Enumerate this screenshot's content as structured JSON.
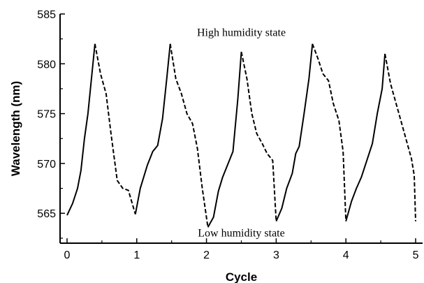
{
  "chart_data": {
    "type": "line",
    "title": "",
    "xlabel": "Cycle",
    "ylabel": "Wavelength (nm)",
    "xlim": [
      -0.1,
      5.1
    ],
    "ylim": [
      562,
      585
    ],
    "x_ticks": [
      0,
      1,
      2,
      3,
      4,
      5
    ],
    "y_ticks": [
      565,
      570,
      575,
      580,
      585
    ],
    "grid": false,
    "annotations": [
      {
        "text": "High humidity state",
        "x": 2.5,
        "y": 583.2
      },
      {
        "text": "Low humidity state",
        "x": 2.5,
        "y": 563.1
      }
    ],
    "series": [
      {
        "style": "solid",
        "segments": [
          {
            "x": [
              0.0,
              0.08,
              0.15,
              0.2,
              0.25,
              0.3,
              0.35,
              0.4
            ],
            "y": [
              564.8,
              566.0,
              567.5,
              569.3,
              572.5,
              575.0,
              578.5,
              582.0
            ]
          },
          {
            "x": [
              0.98,
              1.05,
              1.15,
              1.23,
              1.3,
              1.37,
              1.43,
              1.48
            ],
            "y": [
              564.9,
              567.5,
              569.8,
              571.2,
              571.8,
              574.5,
              578.5,
              582.0
            ]
          },
          {
            "x": [
              2.02,
              2.1,
              2.17,
              2.23,
              2.3,
              2.38,
              2.45,
              2.5
            ],
            "y": [
              563.6,
              564.6,
              567.2,
              568.6,
              569.8,
              571.2,
              576.5,
              581.2
            ]
          },
          {
            "x": [
              3.0,
              3.08,
              3.15,
              3.23,
              3.28,
              3.33,
              3.4,
              3.47,
              3.52
            ],
            "y": [
              564.2,
              565.5,
              567.5,
              569.0,
              571.0,
              571.7,
              575.0,
              578.5,
              582.0
            ]
          },
          {
            "x": [
              4.0,
              4.08,
              4.15,
              4.22,
              4.3,
              4.38,
              4.45,
              4.52,
              4.56
            ],
            "y": [
              564.2,
              566.2,
              567.5,
              568.6,
              570.3,
              572.0,
              575.0,
              577.5,
              581.0
            ]
          }
        ]
      },
      {
        "style": "dashed",
        "segments": [
          {
            "x": [
              0.4,
              0.48,
              0.56,
              0.63,
              0.72,
              0.8,
              0.88,
              0.98
            ],
            "y": [
              582.0,
              579.0,
              577.0,
              573.0,
              568.3,
              567.5,
              567.3,
              564.9
            ]
          },
          {
            "x": [
              1.48,
              1.56,
              1.64,
              1.72,
              1.8,
              1.87,
              1.94,
              2.02
            ],
            "y": [
              582.0,
              578.5,
              577.0,
              575.0,
              574.0,
              571.5,
              567.5,
              563.6
            ]
          },
          {
            "x": [
              2.5,
              2.58,
              2.65,
              2.72,
              2.8,
              2.87,
              2.95,
              3.0
            ],
            "y": [
              581.2,
              578.5,
              575.0,
              573.0,
              572.0,
              571.0,
              570.3,
              564.2
            ]
          },
          {
            "x": [
              3.52,
              3.6,
              3.67,
              3.75,
              3.82,
              3.9,
              3.96,
              4.0
            ],
            "y": [
              582.0,
              580.5,
              579.0,
              578.3,
              576.0,
              574.3,
              571.2,
              564.2
            ]
          },
          {
            "x": [
              4.56,
              4.64,
              4.72,
              4.8,
              4.88,
              4.94,
              4.98,
              5.0
            ],
            "y": [
              581.0,
              578.0,
              576.0,
              574.0,
              572.0,
              570.5,
              568.8,
              564.2
            ]
          }
        ]
      }
    ]
  }
}
